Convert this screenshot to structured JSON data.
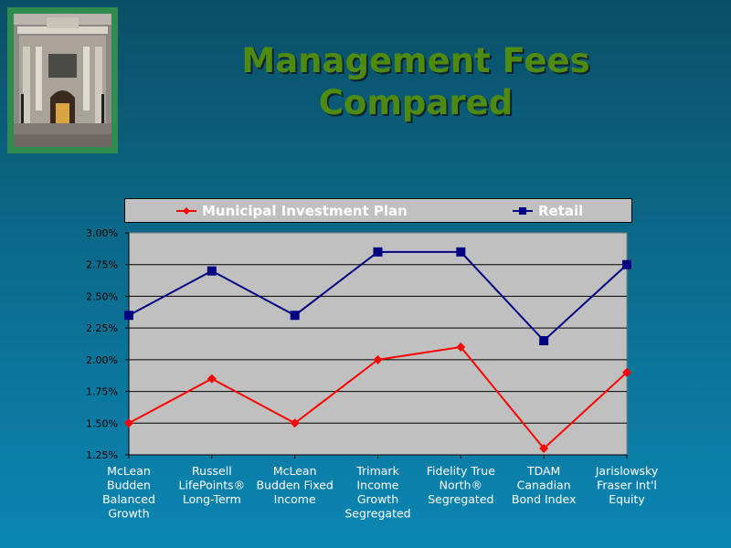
{
  "slide": {
    "title_line1": "Management Fees",
    "title_line2": "Compared"
  },
  "colors": {
    "municipal": "#ff0000",
    "retail": "#000080",
    "title": "#4f8a10",
    "plot_bg": "#c0c0c0"
  },
  "photo": {
    "icon": "city-building-photo"
  },
  "chart_data": {
    "type": "line",
    "categories": [
      [
        "McLean",
        "Budden",
        "Balanced",
        "Growth"
      ],
      [
        "Russell",
        "LifePoints®",
        "Long-Term"
      ],
      [
        "McLean",
        "Budden Fixed",
        "Income"
      ],
      [
        "Trimark",
        "Income",
        "Growth",
        "Segregated"
      ],
      [
        "Fidelity True",
        "North®",
        "Segregated"
      ],
      [
        "TDAM",
        "Canadian",
        "Bond Index"
      ],
      [
        "Jarislowsky",
        "Fraser Int'l",
        "Equity"
      ]
    ],
    "series": [
      {
        "name": "Municipal Investment Plan",
        "values": [
          1.5,
          1.85,
          1.5,
          2.0,
          2.1,
          1.3,
          1.9
        ],
        "marker": "diamond",
        "color": "#ff0000"
      },
      {
        "name": "Retail",
        "values": [
          2.35,
          2.7,
          2.35,
          2.85,
          2.85,
          2.15,
          2.75
        ],
        "marker": "square",
        "color": "#000080"
      }
    ],
    "yticks": [
      "3.00%",
      "2.75%",
      "2.50%",
      "2.25%",
      "2.00%",
      "1.75%",
      "1.50%",
      "1.25%"
    ],
    "ylim": [
      1.25,
      3.0
    ],
    "grid": true,
    "legend_position": "top"
  }
}
